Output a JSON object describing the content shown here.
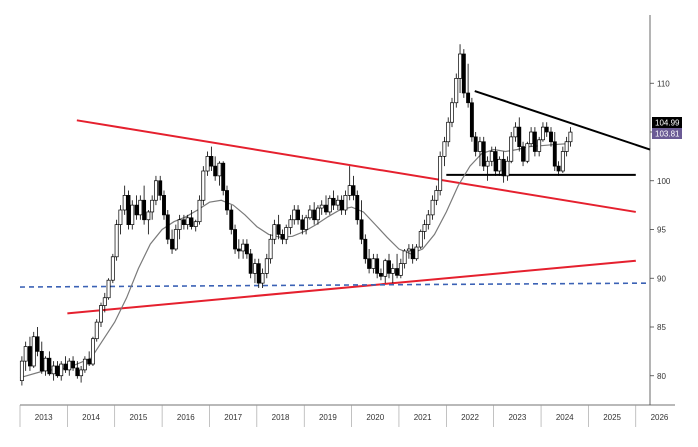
{
  "chart_data": {
    "type": "candlestick",
    "title": "",
    "xlabel": "",
    "ylabel": "",
    "x_ticks": [
      "2013",
      "2014",
      "2015",
      "2016",
      "2017",
      "2018",
      "2019",
      "2020",
      "2021",
      "2022",
      "2023",
      "2024",
      "2025",
      "2026"
    ],
    "y_ticks": [
      80,
      85,
      90,
      95,
      100,
      105,
      110
    ],
    "ylim": [
      77,
      117
    ],
    "xlim": [
      2013.0,
      2026.3
    ],
    "grid": false,
    "legend": "none",
    "last_value": "104.99",
    "moving_average_value": "103.81",
    "colors": {
      "up_candle": "#ffffff",
      "down_candle": "#000000",
      "moving_average": "#7a7a7a",
      "red_trendline": "#e5202e",
      "black_trendline": "#000000",
      "dashed_level": "#3b62b5",
      "ma_badge": "#6b5b95",
      "price_badge": "#000000"
    },
    "candles_monthly": [
      [
        2013.0,
        79.5,
        82.0,
        79.0,
        81.5
      ],
      [
        2013.08,
        81.5,
        83.5,
        80.5,
        83.0
      ],
      [
        2013.17,
        83.0,
        84.0,
        80.5,
        81.0
      ],
      [
        2013.25,
        81.0,
        84.5,
        80.8,
        84.0
      ],
      [
        2013.33,
        84.0,
        85.0,
        82.0,
        82.5
      ],
      [
        2013.42,
        82.5,
        83.5,
        80.2,
        80.5
      ],
      [
        2013.5,
        80.5,
        82.0,
        80.0,
        81.8
      ],
      [
        2013.58,
        81.8,
        82.5,
        80.0,
        80.2
      ],
      [
        2013.67,
        80.2,
        81.5,
        79.5,
        81.0
      ],
      [
        2013.75,
        81.0,
        81.5,
        79.8,
        80.0
      ],
      [
        2013.83,
        80.0,
        81.5,
        79.5,
        81.2
      ],
      [
        2013.92,
        81.2,
        82.0,
        80.3,
        80.6
      ],
      [
        2014.0,
        80.6,
        81.8,
        80.0,
        81.5
      ],
      [
        2014.08,
        81.5,
        82.0,
        80.5,
        80.8
      ],
      [
        2014.17,
        80.8,
        81.5,
        79.7,
        80.0
      ],
      [
        2014.25,
        80.0,
        81.0,
        79.3,
        80.6
      ],
      [
        2014.33,
        80.6,
        82.0,
        80.3,
        81.7
      ],
      [
        2014.42,
        81.7,
        82.5,
        81.0,
        81.2
      ],
      [
        2014.5,
        81.2,
        84.0,
        81.0,
        83.8
      ],
      [
        2014.58,
        83.8,
        85.8,
        83.5,
        85.5
      ],
      [
        2014.67,
        85.5,
        87.5,
        85.0,
        87.2
      ],
      [
        2014.75,
        87.2,
        88.5,
        86.5,
        88.0
      ],
      [
        2014.83,
        88.0,
        90.0,
        87.8,
        89.8
      ],
      [
        2014.92,
        89.8,
        92.5,
        89.5,
        92.2
      ],
      [
        2015.0,
        92.2,
        96.0,
        91.8,
        95.5
      ],
      [
        2015.08,
        95.5,
        97.5,
        94.5,
        97.0
      ],
      [
        2015.17,
        97.0,
        99.5,
        96.5,
        98.5
      ],
      [
        2015.25,
        98.5,
        99.0,
        95.0,
        95.5
      ],
      [
        2015.33,
        95.5,
        98.0,
        95.0,
        97.5
      ],
      [
        2015.42,
        97.5,
        98.5,
        96.0,
        96.5
      ],
      [
        2015.5,
        96.5,
        98.5,
        96.0,
        98.0
      ],
      [
        2015.58,
        98.0,
        99.5,
        95.5,
        96.0
      ],
      [
        2015.67,
        96.0,
        97.0,
        94.5,
        96.8
      ],
      [
        2015.75,
        96.8,
        98.5,
        96.0,
        98.0
      ],
      [
        2015.83,
        98.0,
        100.5,
        97.5,
        100.0
      ],
      [
        2015.92,
        100.0,
        100.5,
        98.0,
        98.5
      ],
      [
        2016.0,
        98.5,
        99.0,
        96.0,
        96.5
      ],
      [
        2016.08,
        96.5,
        97.0,
        93.5,
        94.0
      ],
      [
        2016.17,
        94.0,
        95.0,
        92.5,
        93.0
      ],
      [
        2016.25,
        93.0,
        95.5,
        92.8,
        95.0
      ],
      [
        2016.33,
        95.0,
        96.5,
        94.0,
        96.0
      ],
      [
        2016.42,
        96.0,
        96.5,
        95.0,
        95.5
      ],
      [
        2016.5,
        95.5,
        96.5,
        95.0,
        96.2
      ],
      [
        2016.58,
        96.2,
        97.0,
        95.0,
        95.3
      ],
      [
        2016.67,
        95.3,
        96.0,
        94.8,
        95.8
      ],
      [
        2016.75,
        95.8,
        98.5,
        95.5,
        98.0
      ],
      [
        2016.83,
        98.0,
        101.5,
        97.5,
        101.0
      ],
      [
        2016.92,
        101.0,
        103.0,
        100.5,
        102.5
      ],
      [
        2017.0,
        102.5,
        103.5,
        101.0,
        101.5
      ],
      [
        2017.08,
        101.5,
        102.5,
        100.0,
        100.5
      ],
      [
        2017.17,
        100.5,
        102.0,
        99.5,
        101.8
      ],
      [
        2017.25,
        101.8,
        102.0,
        98.5,
        99.0
      ],
      [
        2017.33,
        99.0,
        99.5,
        96.5,
        97.0
      ],
      [
        2017.42,
        97.0,
        97.5,
        94.5,
        95.0
      ],
      [
        2017.5,
        95.0,
        95.5,
        92.5,
        93.0
      ],
      [
        2017.58,
        93.0,
        94.0,
        92.0,
        92.8
      ],
      [
        2017.67,
        92.8,
        94.0,
        92.0,
        93.5
      ],
      [
        2017.75,
        93.5,
        94.0,
        92.0,
        92.5
      ],
      [
        2017.83,
        92.5,
        93.0,
        90.0,
        90.5
      ],
      [
        2017.92,
        90.5,
        92.0,
        89.5,
        91.5
      ],
      [
        2018.0,
        91.5,
        92.0,
        89.0,
        89.5
      ],
      [
        2018.08,
        89.5,
        91.0,
        89.0,
        90.5
      ],
      [
        2018.17,
        90.5,
        92.5,
        90.0,
        92.0
      ],
      [
        2018.25,
        92.0,
        94.5,
        91.5,
        94.0
      ],
      [
        2018.33,
        94.0,
        96.0,
        93.5,
        95.5
      ],
      [
        2018.42,
        95.5,
        96.5,
        94.0,
        94.5
      ],
      [
        2018.5,
        94.5,
        95.0,
        93.5,
        94.0
      ],
      [
        2018.58,
        94.0,
        95.5,
        93.5,
        95.2
      ],
      [
        2018.67,
        95.2,
        96.5,
        94.5,
        96.0
      ],
      [
        2018.75,
        96.0,
        97.5,
        95.5,
        97.0
      ],
      [
        2018.83,
        97.0,
        97.5,
        95.5,
        96.0
      ],
      [
        2018.92,
        96.0,
        96.5,
        94.5,
        95.0
      ],
      [
        2019.0,
        95.0,
        96.5,
        94.5,
        96.2
      ],
      [
        2019.08,
        96.2,
        97.5,
        96.0,
        97.0
      ],
      [
        2019.17,
        97.0,
        97.8,
        95.5,
        96.0
      ],
      [
        2019.25,
        96.0,
        97.5,
        95.5,
        97.2
      ],
      [
        2019.33,
        97.2,
        98.0,
        96.5,
        97.5
      ],
      [
        2019.42,
        97.5,
        98.5,
        96.5,
        96.8
      ],
      [
        2019.5,
        96.8,
        98.5,
        96.5,
        98.2
      ],
      [
        2019.58,
        98.2,
        99.0,
        97.0,
        97.5
      ],
      [
        2019.67,
        97.5,
        98.5,
        97.0,
        98.0
      ],
      [
        2019.75,
        98.0,
        98.5,
        96.5,
        97.0
      ],
      [
        2019.83,
        97.0,
        99.0,
        96.5,
        98.5
      ],
      [
        2019.92,
        98.5,
        101.5,
        98.0,
        99.5
      ],
      [
        2020.0,
        99.5,
        100.5,
        98.0,
        98.5
      ],
      [
        2020.08,
        98.5,
        99.0,
        95.5,
        96.0
      ],
      [
        2020.17,
        96.0,
        98.0,
        93.5,
        94.0
      ],
      [
        2020.25,
        94.0,
        94.5,
        91.5,
        92.0
      ],
      [
        2020.33,
        92.0,
        93.0,
        90.5,
        91.0
      ],
      [
        2020.42,
        91.0,
        92.5,
        90.5,
        92.0
      ],
      [
        2020.5,
        92.0,
        92.5,
        90.0,
        90.5
      ],
      [
        2020.58,
        90.5,
        91.0,
        89.8,
        90.2
      ],
      [
        2020.67,
        90.2,
        92.0,
        89.5,
        91.8
      ],
      [
        2020.75,
        91.8,
        92.5,
        90.0,
        90.5
      ],
      [
        2020.83,
        90.5,
        91.5,
        89.5,
        91.0
      ],
      [
        2020.92,
        91.0,
        92.5,
        90.0,
        90.3
      ],
      [
        2021.0,
        90.3,
        92.0,
        90.0,
        91.5
      ],
      [
        2021.08,
        91.5,
        93.0,
        91.0,
        92.8
      ],
      [
        2021.17,
        92.8,
        93.5,
        92.0,
        93.0
      ],
      [
        2021.25,
        93.0,
        93.5,
        91.5,
        92.0
      ],
      [
        2021.33,
        92.0,
        93.5,
        91.8,
        93.2
      ],
      [
        2021.42,
        93.2,
        95.0,
        93.0,
        94.8
      ],
      [
        2021.5,
        94.8,
        96.0,
        94.0,
        95.5
      ],
      [
        2021.58,
        95.5,
        97.0,
        95.0,
        96.5
      ],
      [
        2021.67,
        96.5,
        98.5,
        96.0,
        98.0
      ],
      [
        2021.75,
        98.0,
        99.5,
        97.5,
        99.0
      ],
      [
        2021.83,
        99.0,
        103.0,
        98.5,
        102.5
      ],
      [
        2021.92,
        102.5,
        104.5,
        101.5,
        104.0
      ],
      [
        2022.0,
        104.0,
        106.5,
        103.5,
        106.0
      ],
      [
        2022.08,
        106.0,
        108.5,
        105.5,
        108.0
      ],
      [
        2022.17,
        108.0,
        111.0,
        107.5,
        110.5
      ],
      [
        2022.25,
        110.5,
        114.0,
        109.0,
        113.0
      ],
      [
        2022.33,
        113.0,
        113.5,
        108.5,
        109.0
      ],
      [
        2022.42,
        109.0,
        112.0,
        107.5,
        108.0
      ],
      [
        2022.5,
        108.0,
        108.5,
        104.0,
        104.5
      ],
      [
        2022.58,
        104.5,
        105.0,
        102.5,
        103.0
      ],
      [
        2022.67,
        103.0,
        104.5,
        101.5,
        104.0
      ],
      [
        2022.75,
        104.0,
        104.5,
        101.0,
        101.5
      ],
      [
        2022.83,
        101.5,
        102.5,
        100.0,
        102.0
      ],
      [
        2022.92,
        102.0,
        103.5,
        101.5,
        103.0
      ],
      [
        2023.0,
        103.0,
        103.5,
        100.5,
        101.0
      ],
      [
        2023.08,
        101.0,
        102.5,
        100.5,
        102.2
      ],
      [
        2023.17,
        102.2,
        103.0,
        99.8,
        100.5
      ],
      [
        2023.25,
        100.5,
        102.5,
        100.0,
        102.0
      ],
      [
        2023.33,
        102.0,
        105.0,
        101.8,
        104.5
      ],
      [
        2023.42,
        104.5,
        106.0,
        104.0,
        105.5
      ],
      [
        2023.5,
        105.5,
        106.5,
        103.0,
        103.5
      ],
      [
        2023.58,
        103.5,
        104.0,
        101.5,
        102.0
      ],
      [
        2023.67,
        102.0,
        104.0,
        101.8,
        103.8
      ],
      [
        2023.75,
        103.8,
        105.5,
        103.5,
        105.0
      ],
      [
        2023.83,
        105.0,
        105.5,
        102.5,
        103.0
      ],
      [
        2023.92,
        103.0,
        104.5,
        102.5,
        104.2
      ],
      [
        2024.0,
        104.2,
        106.0,
        104.0,
        105.5
      ],
      [
        2024.08,
        105.5,
        106.0,
        104.5,
        105.0
      ],
      [
        2024.17,
        105.0,
        105.5,
        103.5,
        104.0
      ],
      [
        2024.25,
        104.0,
        105.0,
        101.0,
        101.5
      ],
      [
        2024.33,
        101.5,
        102.0,
        100.5,
        101.0
      ],
      [
        2024.42,
        101.0,
        103.5,
        100.8,
        103.0
      ],
      [
        2024.5,
        103.0,
        104.5,
        102.5,
        104.0
      ],
      [
        2024.58,
        104.0,
        105.5,
        103.5,
        104.99
      ]
    ],
    "moving_average": [
      [
        2013.0,
        79.8
      ],
      [
        2013.5,
        80.5
      ],
      [
        2014.0,
        80.8
      ],
      [
        2014.5,
        81.8
      ],
      [
        2015.0,
        85.5
      ],
      [
        2015.25,
        88.0
      ],
      [
        2015.5,
        91.0
      ],
      [
        2015.75,
        93.5
      ],
      [
        2016.0,
        95.0
      ],
      [
        2016.25,
        95.8
      ],
      [
        2016.5,
        96.3
      ],
      [
        2016.75,
        97.0
      ],
      [
        2017.0,
        97.8
      ],
      [
        2017.25,
        98.0
      ],
      [
        2017.5,
        97.5
      ],
      [
        2017.75,
        96.5
      ],
      [
        2018.0,
        95.3
      ],
      [
        2018.25,
        94.5
      ],
      [
        2018.5,
        94.2
      ],
      [
        2018.75,
        94.3
      ],
      [
        2019.0,
        94.8
      ],
      [
        2019.25,
        95.5
      ],
      [
        2019.5,
        96.3
      ],
      [
        2019.75,
        97.0
      ],
      [
        2020.0,
        97.3
      ],
      [
        2020.25,
        96.8
      ],
      [
        2020.5,
        95.5
      ],
      [
        2020.75,
        94.2
      ],
      [
        2021.0,
        93.0
      ],
      [
        2021.25,
        92.5
      ],
      [
        2021.5,
        93.0
      ],
      [
        2021.75,
        94.5
      ],
      [
        2022.0,
        96.8
      ],
      [
        2022.25,
        99.5
      ],
      [
        2022.5,
        101.5
      ],
      [
        2022.75,
        102.8
      ],
      [
        2023.0,
        103.2
      ],
      [
        2023.25,
        103.0
      ],
      [
        2023.5,
        103.2
      ],
      [
        2023.75,
        103.5
      ],
      [
        2024.0,
        103.6
      ],
      [
        2024.25,
        103.7
      ],
      [
        2024.58,
        103.81
      ]
    ],
    "trendlines": [
      {
        "name": "red-upper-resistance",
        "color_key": "red_trendline",
        "points": [
          [
            2014.2,
            106.2
          ],
          [
            2026.0,
            96.8
          ]
        ]
      },
      {
        "name": "red-lower-support",
        "color_key": "red_trendline",
        "points": [
          [
            2014.0,
            86.4
          ],
          [
            2026.0,
            91.8
          ]
        ]
      },
      {
        "name": "black-descending-resistance",
        "color_key": "black_trendline",
        "points": [
          [
            2022.6,
            109.2
          ],
          [
            2026.3,
            103.2
          ]
        ]
      },
      {
        "name": "black-horizontal-support",
        "color_key": "black_trendline",
        "points": [
          [
            2022.0,
            100.6
          ],
          [
            2026.0,
            100.6
          ]
        ]
      },
      {
        "name": "blue-dashed-level",
        "color_key": "dashed_level",
        "dashed": true,
        "points": [
          [
            2013.0,
            89.1
          ],
          [
            2026.3,
            89.5
          ]
        ]
      }
    ]
  }
}
